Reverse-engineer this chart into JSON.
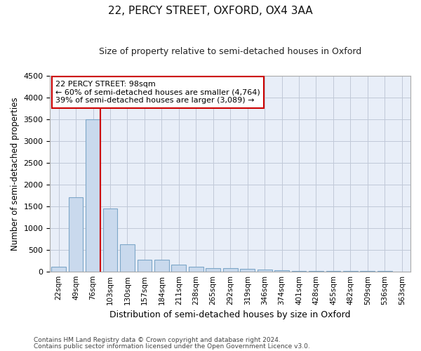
{
  "title": "22, PERCY STREET, OXFORD, OX4 3AA",
  "subtitle": "Size of property relative to semi-detached houses in Oxford",
  "xlabel": "Distribution of semi-detached houses by size in Oxford",
  "ylabel": "Number of semi-detached properties",
  "categories": [
    "22sqm",
    "49sqm",
    "76sqm",
    "103sqm",
    "130sqm",
    "157sqm",
    "184sqm",
    "211sqm",
    "238sqm",
    "265sqm",
    "292sqm",
    "319sqm",
    "346sqm",
    "374sqm",
    "401sqm",
    "428sqm",
    "455sqm",
    "482sqm",
    "509sqm",
    "536sqm",
    "563sqm"
  ],
  "values": [
    100,
    1700,
    3500,
    1450,
    625,
    275,
    270,
    150,
    100,
    75,
    75,
    60,
    50,
    30,
    15,
    10,
    8,
    5,
    4,
    3,
    2
  ],
  "bar_color": "#c9d9ed",
  "bar_edge_color": "#7da6c8",
  "vline_x_index": 2.42,
  "vline_color": "#cc0000",
  "annotation_text": "22 PERCY STREET: 98sqm\n← 60% of semi-detached houses are smaller (4,764)\n39% of semi-detached houses are larger (3,089) →",
  "annotation_box_color": "#ffffff",
  "annotation_box_edge": "#cc0000",
  "ylim": [
    0,
    4500
  ],
  "yticks": [
    0,
    500,
    1000,
    1500,
    2000,
    2500,
    3000,
    3500,
    4000,
    4500
  ],
  "grid_color": "#c0c8d8",
  "bg_color": "#e8eef8",
  "footer_line1": "Contains HM Land Registry data © Crown copyright and database right 2024.",
  "footer_line2": "Contains public sector information licensed under the Open Government Licence v3.0."
}
